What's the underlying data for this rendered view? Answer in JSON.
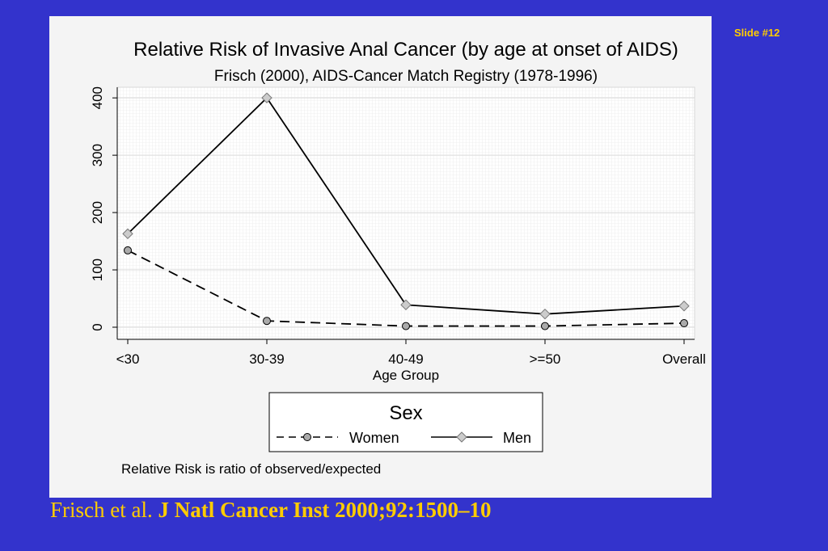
{
  "slide_label": "Slide #12",
  "citation": {
    "authors": "Frisch et al.",
    "journal": "J Natl Cancer Inst 2000;92:1500–10"
  },
  "colors": {
    "background": "#3333cc",
    "panel": "#f4f4f4",
    "accent": "#ffcc00",
    "line": "#000000",
    "men_marker": "#cccccc"
  },
  "chart_data": {
    "type": "line",
    "title": "Relative Risk of Invasive Anal Cancer (by age at onset of AIDS)",
    "subtitle": "Frisch (2000), AIDS-Cancer Match Registry (1978-1996)",
    "xlabel": "Age Group",
    "ylabel": "",
    "categories": [
      "<30",
      "30-39",
      "40-49",
      ">=50",
      "Overall"
    ],
    "yticks": [
      0,
      100,
      200,
      300,
      400
    ],
    "ylim": [
      -10,
      420
    ],
    "grid": true,
    "legend": {
      "title": "Sex",
      "placement": "bottom-center"
    },
    "note": "Relative Risk is ratio of observed/expected",
    "series": [
      {
        "name": "Women",
        "values": [
          134,
          11,
          2,
          2,
          7
        ],
        "style": "dashed",
        "marker": "circle"
      },
      {
        "name": "Men",
        "values": [
          163,
          400,
          39,
          23,
          37
        ],
        "style": "solid",
        "marker": "diamond"
      }
    ]
  }
}
